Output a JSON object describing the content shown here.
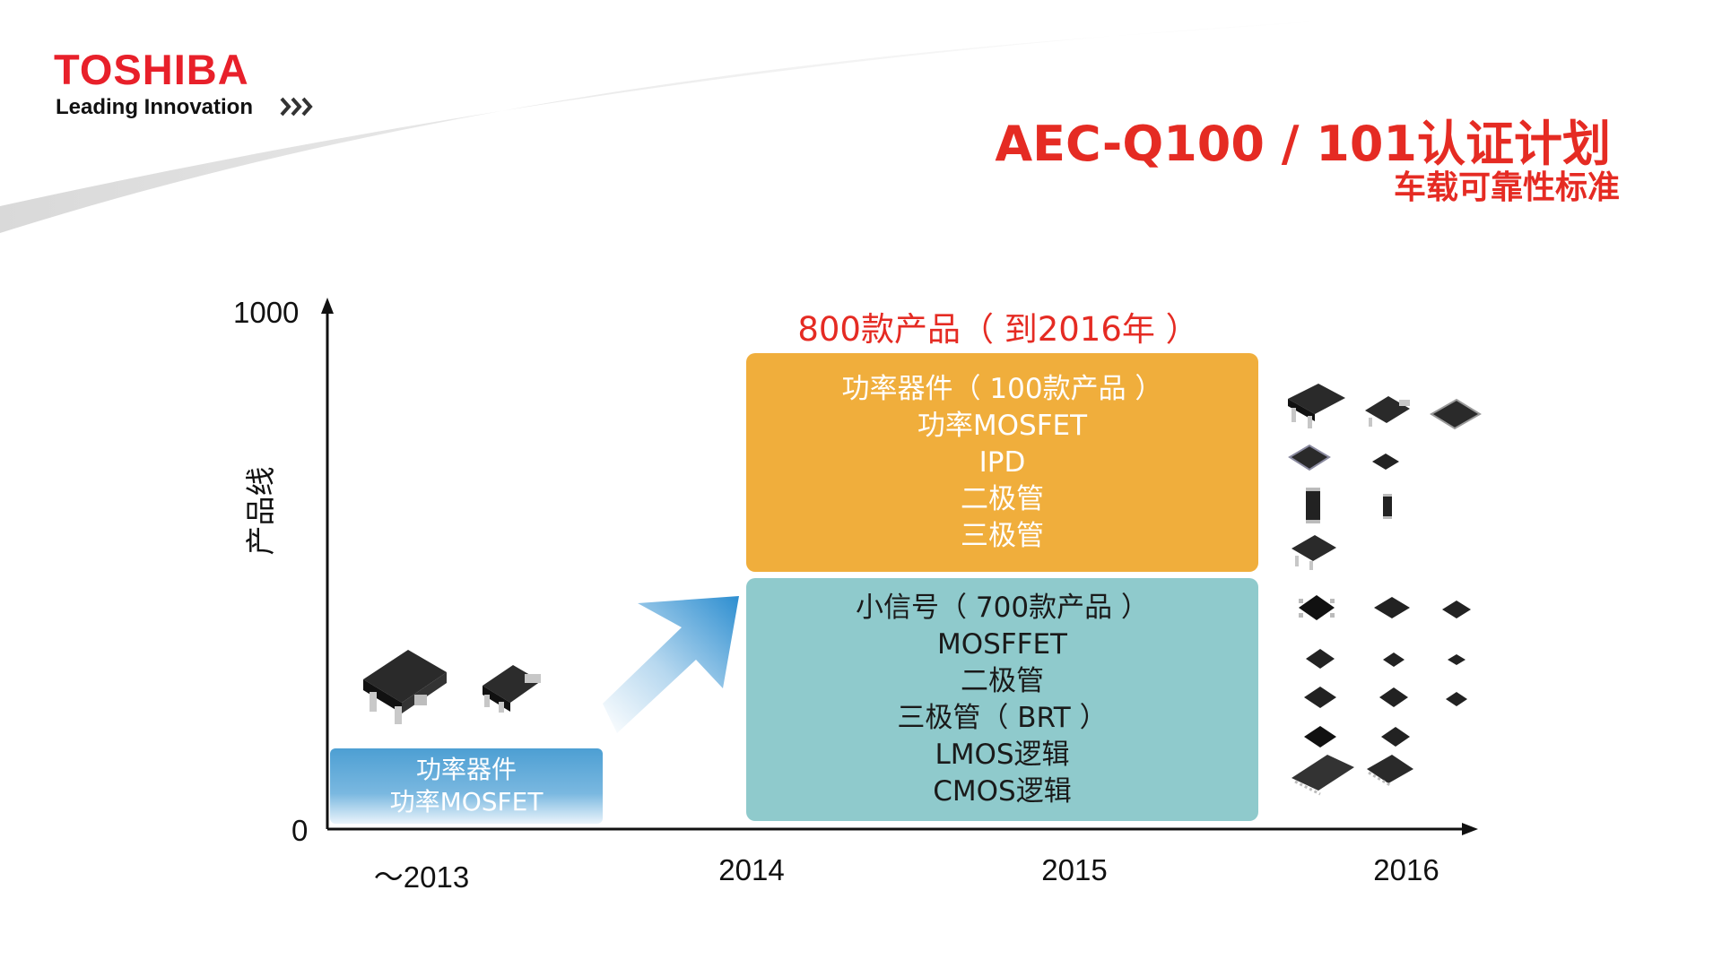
{
  "brand": {
    "logo": "TOSHIBA",
    "tagline": "Leading Innovation",
    "colors": {
      "brand_red": "#e8202a",
      "title_red": "#e52b23"
    }
  },
  "title": "AEC-Q100 / 101认证计划",
  "subtitle": "车载可靠性标准",
  "chart_data": {
    "type": "diagram-timeline",
    "ylabel": "产品线",
    "yticks": [
      "0",
      "1000"
    ],
    "ylim": [
      0,
      1000
    ],
    "xticks": [
      "～2013",
      "2014",
      "2015",
      "2016"
    ],
    "headline": "800款产品（ 到2016年 ）",
    "stages": [
      {
        "period": "～2013",
        "lines": [
          "功率器件",
          "功率MOSFET"
        ],
        "color": "#5aa8d8"
      },
      {
        "period": "2014-2016",
        "lines": [
          "功率器件（ 100款产品 ）",
          "功率MOSFET",
          "IPD",
          "二极管",
          "三极管"
        ],
        "color": "#f0ae3c"
      },
      {
        "period": "2014-2016",
        "lines": [
          "小信号（ 700款产品 ）",
          "MOSFFET",
          "二极管",
          "三极管（ BRT ）",
          "LMOS逻辑",
          "CMOS逻辑"
        ],
        "color": "#8fcacc"
      }
    ],
    "package_icons": [
      "dpak-package-icon",
      "small-power-package-icon",
      "sop-package-icon",
      "diode-package-icon",
      "chip-package-icon",
      "tssop-package-icon"
    ]
  }
}
